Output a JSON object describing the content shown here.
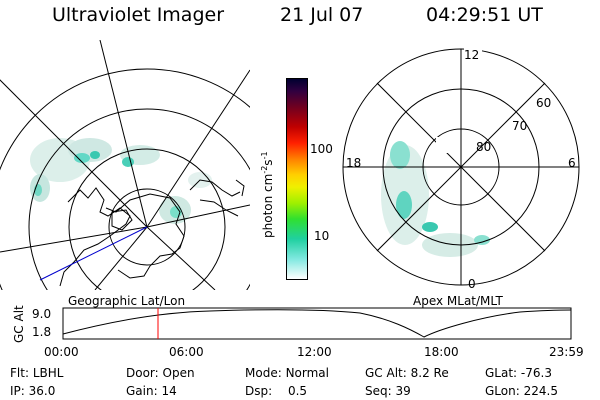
{
  "header": {
    "title": "Ultraviolet Imager",
    "date": "21 Jul 07",
    "time": "04:29:51 UT"
  },
  "colorbar": {
    "unit_label": "photon cm",
    "unit_sup1": "-2",
    "unit_mid": "s",
    "unit_sup2": "-1",
    "tick_high": "100",
    "tick_low": "10"
  },
  "left_panel": {
    "label": "Geographic Lat/Lon"
  },
  "right_panel": {
    "label": "Apex MLat/MLT",
    "mlt_labels": {
      "top": "12",
      "left": "18",
      "right": "6",
      "bottom": "0"
    },
    "lat_labels": [
      "60",
      "70",
      "80"
    ]
  },
  "altitude_plot": {
    "ylabel": "GC Alt",
    "y_ticks": [
      "9.0",
      "1.8"
    ],
    "x_ticks": [
      "00:00",
      "06:00",
      "12:00",
      "18:00",
      "23:59"
    ],
    "current_time_fraction": 0.187
  },
  "status": {
    "flt_label": "Flt:",
    "flt_value": "LBHL",
    "door_label": "Door:",
    "door_value": "Open",
    "mode_label": "Mode:",
    "mode_value": "Normal",
    "gcalt_label": "GC Alt:",
    "gcalt_value": "8.2 Re",
    "glat_label": "GLat:",
    "glat_value": "-76.3",
    "ip_label": "IP:",
    "ip_value": "36.0",
    "gain_label": "Gain:",
    "gain_value": "14",
    "dsp_label": "Dsp:",
    "dsp_value": "0.5",
    "seq_label": "Seq:",
    "seq_value": "39",
    "glon_label": "GLon:",
    "glon_value": "224.5"
  },
  "colors": {
    "redline": "#ff0000",
    "blueline": "#0000cc"
  }
}
